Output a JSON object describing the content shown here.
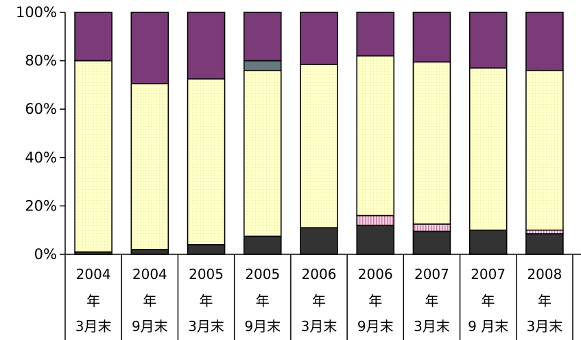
{
  "chart_data": {
    "type": "bar",
    "stacked": true,
    "percent": true,
    "title": "",
    "xlabel": "",
    "ylabel": "",
    "ylim": [
      0,
      100
    ],
    "yticks": [
      "0%",
      "20%",
      "40%",
      "60%",
      "80%",
      "100%"
    ],
    "grid": false,
    "legend": "none",
    "categories": [
      [
        "2004",
        "年",
        "3月末"
      ],
      [
        "2004",
        "年",
        "9月末"
      ],
      [
        "2005",
        "年",
        "3月末"
      ],
      [
        "2005",
        "年",
        "9月末"
      ],
      [
        "2006",
        "年",
        "3月末"
      ],
      [
        "2006",
        "年",
        "9月末"
      ],
      [
        "2007",
        "年",
        "3月末"
      ],
      [
        "2007",
        "年",
        "9 月末"
      ],
      [
        "2008",
        "年",
        "3月末"
      ]
    ],
    "series": [
      {
        "color": "#333333",
        "values": [
          1,
          2,
          4,
          7.5,
          11,
          12,
          9.5,
          10,
          8.5
        ]
      },
      {
        "color": "#f0c8dc",
        "values": [
          0,
          0,
          0,
          0,
          0,
          4,
          3,
          0,
          1.5
        ]
      },
      {
        "color": "#ffffcc",
        "values": [
          79,
          68.5,
          68.5,
          68.5,
          67.5,
          66,
          67,
          67,
          66
        ]
      },
      {
        "color": "#66797f",
        "values": [
          0,
          0,
          0,
          4,
          0,
          0,
          0,
          0,
          0
        ]
      },
      {
        "color": "#7a3b78",
        "values": [
          20,
          29.5,
          27.5,
          20,
          21.5,
          18,
          20.5,
          23,
          24
        ]
      }
    ]
  }
}
